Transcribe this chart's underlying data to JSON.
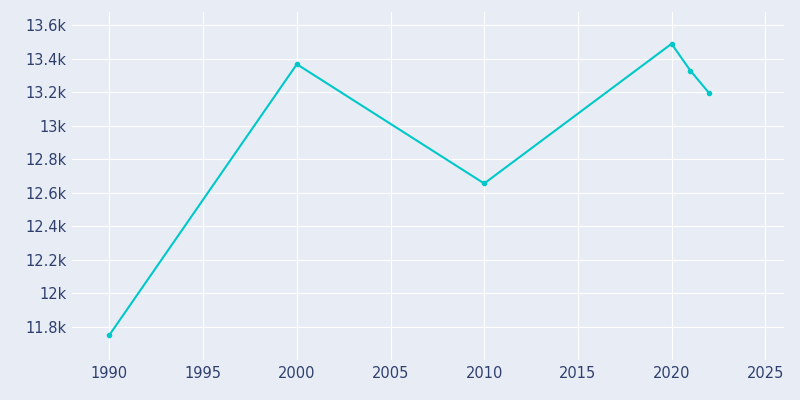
{
  "years": [
    1990,
    2000,
    2010,
    2020,
    2021,
    2022
  ],
  "population": [
    11750,
    13368,
    12655,
    13490,
    13330,
    13196
  ],
  "line_color": "#00c8c8",
  "marker": "o",
  "marker_size": 3,
  "line_width": 1.5,
  "background_color": "#e8edf5",
  "grid_color": "#ffffff",
  "xlim": [
    1988,
    2026
  ],
  "ylim": [
    11600,
    13680
  ],
  "xticks": [
    1990,
    1995,
    2000,
    2005,
    2010,
    2015,
    2020,
    2025
  ],
  "yticks": [
    11800,
    12000,
    12200,
    12400,
    12600,
    12800,
    13000,
    13200,
    13400,
    13600
  ],
  "tick_label_color": "#2e3f6e",
  "tick_fontsize": 10.5
}
